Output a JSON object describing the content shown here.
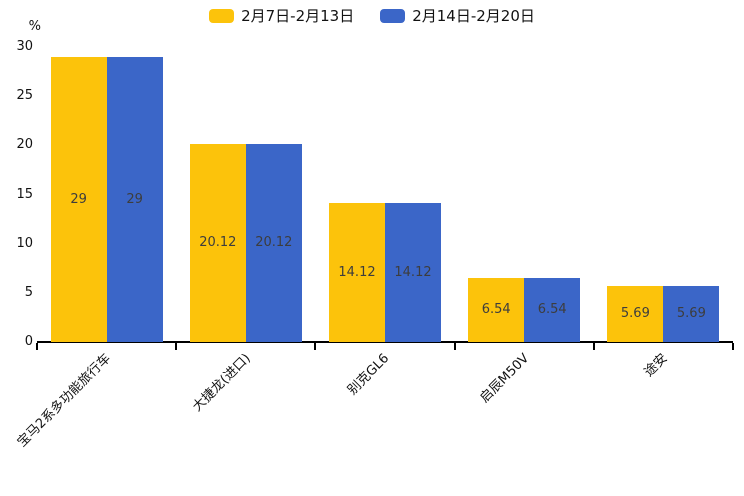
{
  "legend": {
    "items": [
      {
        "label": "2月7日-2月13日",
        "color": "#FCC30B"
      },
      {
        "label": "2月14日-2月20日",
        "color": "#3B66C8"
      }
    ]
  },
  "chart_data": {
    "type": "bar",
    "title": "",
    "categories": [
      "宝马2系多功能旅行车",
      "大捷龙(进口)",
      "别克GL6",
      "启辰M50V",
      "途安"
    ],
    "series": [
      {
        "name": "2月7日-2月13日",
        "color": "#FCC30B",
        "values": [
          29,
          20.12,
          14.12,
          6.54,
          5.69
        ]
      },
      {
        "name": "2月14日-2月20日",
        "color": "#3B66C8",
        "values": [
          29,
          20.12,
          14.12,
          6.54,
          5.69
        ]
      }
    ],
    "xlabel": "",
    "ylabel": "%",
    "ylim": [
      0,
      30
    ],
    "yticks": [
      0,
      5,
      10,
      15,
      20,
      25,
      30
    ],
    "grid": false,
    "legend_position": "top",
    "value_labels_shown": true,
    "bar_label_color": "#3d3d3d",
    "axis_color": "#000000"
  }
}
